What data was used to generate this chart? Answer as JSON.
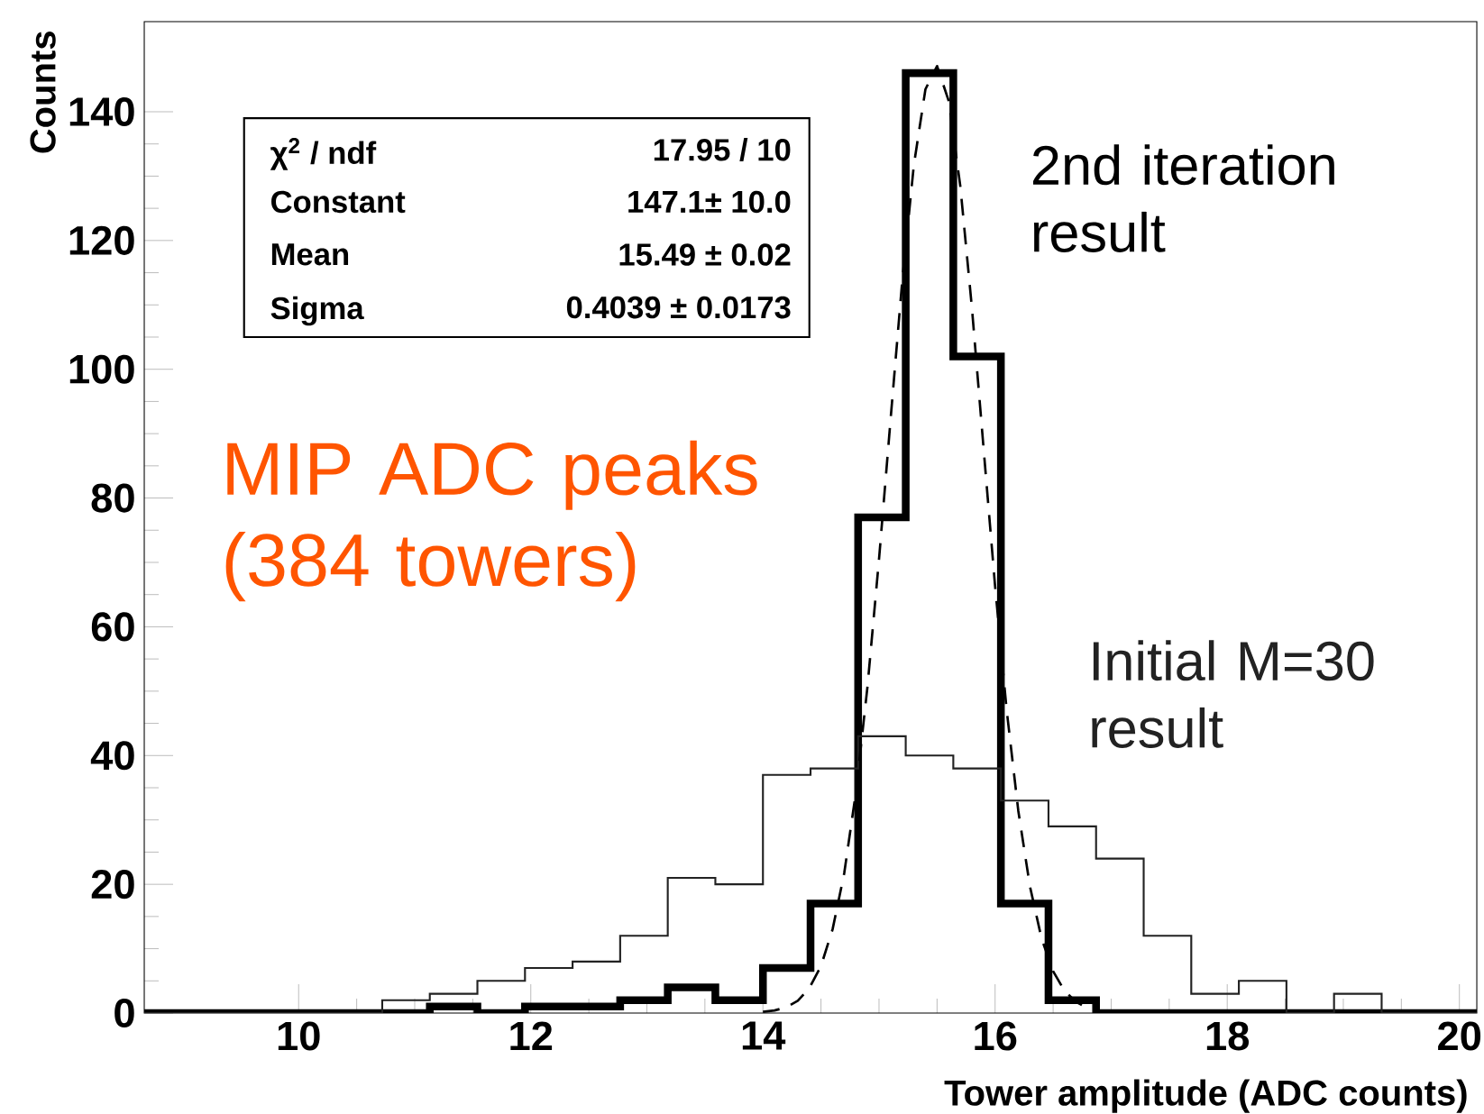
{
  "chart_data": {
    "type": "histogram",
    "xlabel": "Tower amplitude (ADC counts)",
    "ylabel": "Counts",
    "bins": [
      8.67,
      9.08,
      9.49,
      9.9,
      10.31,
      10.72,
      11.13,
      11.54,
      11.95,
      12.36,
      12.77,
      13.18,
      13.59,
      14.0,
      14.41,
      14.82,
      15.23,
      15.64,
      16.05,
      16.46,
      16.87,
      17.28,
      17.69,
      18.1,
      18.51,
      18.92,
      19.33,
      19.74,
      20.15
    ],
    "series": [
      {
        "name": "2nd iteration result",
        "color": "#000000",
        "values": [
          0,
          0,
          0,
          0,
          0,
          0,
          1,
          0,
          1,
          1,
          2,
          4,
          2,
          7,
          17,
          77,
          146,
          102,
          17,
          2,
          0,
          0,
          0,
          0,
          0,
          0,
          0,
          0
        ]
      },
      {
        "name": "Initial M=30 result",
        "color": "#222222",
        "values": [
          0,
          0,
          0,
          0,
          0,
          2,
          3,
          5,
          7,
          8,
          12,
          21,
          20,
          37,
          38,
          43,
          40,
          38,
          33,
          29,
          24,
          12,
          3,
          5,
          0,
          3,
          0,
          0
        ]
      },
      {
        "type": "line",
        "line_style": "dashed",
        "color": "#000000",
        "x": [
          14.0,
          14.1,
          14.2,
          14.3,
          14.4,
          14.5,
          14.6,
          14.7,
          14.8,
          14.9,
          15.0,
          15.1,
          15.2,
          15.3,
          15.4,
          15.5,
          15.6,
          15.7,
          15.8,
          15.9,
          16.0,
          16.1,
          16.2,
          16.3,
          16.4,
          16.5,
          16.6,
          16.7,
          16.8,
          16.9
        ],
        "values": [
          0.2,
          0.4,
          0.9,
          1.9,
          3.9,
          7.3,
          13.0,
          21.7,
          34.2,
          50.6,
          70.5,
          92.3,
          113.7,
          131.7,
          143.5,
          147.1,
          141.7,
          128.5,
          109.6,
          87.9,
          66.3,
          47.0,
          31.4,
          19.7,
          11.6,
          6.5,
          3.4,
          1.7,
          0.8,
          0.3
        ]
      }
    ],
    "xlim": [
      8.67,
      20.15
    ],
    "ylim": [
      0,
      154
    ],
    "xticks": [
      10,
      12,
      14,
      16,
      18,
      20
    ],
    "yticks": [
      0,
      20,
      40,
      60,
      80,
      100,
      120,
      140
    ],
    "grid": false,
    "annotations": [
      "χ$^{2}$ / ndf",
      "17.95 / 10",
      "Constant",
      "147.1± 10.0",
      "Mean",
      "15.49 ± 0.02",
      "Sigma",
      "0.4039 ± 0.0173",
      "MIP ADC peaks (384 towers)"
    ]
  }
}
